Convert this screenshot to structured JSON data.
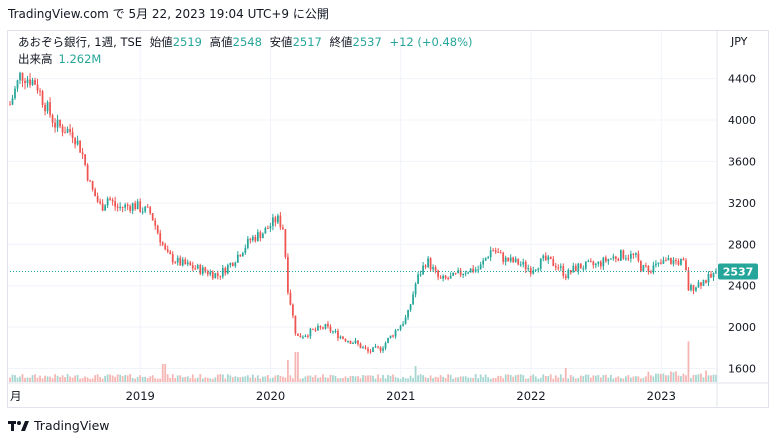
{
  "header": {
    "source_line": "TradingView.com で 5月 22, 2023 19:04 UTC+9 に公開"
  },
  "legend": {
    "symbol": "あおぞら銀行, 1週, TSE",
    "open_label": "始値",
    "open": "2519",
    "high_label": "高値",
    "high": "2548",
    "low_label": "安値",
    "low": "2517",
    "close_label": "終値",
    "close": "2537",
    "change": "+12 (+0.48%)",
    "volume_label": "出来高",
    "volume": "1.262M"
  },
  "footer": {
    "brand": "TradingView",
    "logo": "tradingview-logo-icon"
  },
  "colors": {
    "up": "#26a69a",
    "down": "#ef5350",
    "up_vol": "#a5d6d0",
    "down_vol": "#f5b5b3",
    "grid": "#f0f3fa"
  },
  "chart_data": {
    "type": "candlestick",
    "currency": "JPY",
    "last_price_label": "2537",
    "y_ticks": [
      1600,
      2000,
      2400,
      2800,
      3200,
      3600,
      4000,
      4400
    ],
    "ylim": [
      1470,
      4560
    ],
    "x_ticks": [
      {
        "label": "月",
        "x": 2018.0
      },
      {
        "label": "2019",
        "x": 2019.0
      },
      {
        "label": "2020",
        "x": 2020.0
      },
      {
        "label": "2021",
        "x": 2021.0
      },
      {
        "label": "2022",
        "x": 2022.0
      },
      {
        "label": "2023",
        "x": 2023.0
      }
    ],
    "xlim": [
      2018.0,
      2023.42
    ],
    "close_anchors": [
      {
        "x": 2018.0,
        "y": 4150
      },
      {
        "x": 2018.08,
        "y": 4440
      },
      {
        "x": 2018.2,
        "y": 4360
      },
      {
        "x": 2018.25,
        "y": 4200
      },
      {
        "x": 2018.35,
        "y": 3950
      },
      {
        "x": 2018.48,
        "y": 3880
      },
      {
        "x": 2018.55,
        "y": 3700
      },
      {
        "x": 2018.62,
        "y": 3350
      },
      {
        "x": 2018.7,
        "y": 3150
      },
      {
        "x": 2018.75,
        "y": 3250
      },
      {
        "x": 2018.82,
        "y": 3150
      },
      {
        "x": 2018.95,
        "y": 3180
      },
      {
        "x": 2019.08,
        "y": 3100
      },
      {
        "x": 2019.2,
        "y": 2700
      },
      {
        "x": 2019.3,
        "y": 2620
      },
      {
        "x": 2019.45,
        "y": 2560
      },
      {
        "x": 2019.6,
        "y": 2500
      },
      {
        "x": 2019.7,
        "y": 2620
      },
      {
        "x": 2019.85,
        "y": 2850
      },
      {
        "x": 2019.95,
        "y": 2920
      },
      {
        "x": 2020.05,
        "y": 3050
      },
      {
        "x": 2020.1,
        "y": 2950
      },
      {
        "x": 2020.13,
        "y": 2400
      },
      {
        "x": 2020.2,
        "y": 1900
      },
      {
        "x": 2020.3,
        "y": 1950
      },
      {
        "x": 2020.42,
        "y": 2000
      },
      {
        "x": 2020.55,
        "y": 1900
      },
      {
        "x": 2020.65,
        "y": 1850
      },
      {
        "x": 2020.75,
        "y": 1760
      },
      {
        "x": 2020.85,
        "y": 1800
      },
      {
        "x": 2020.95,
        "y": 1950
      },
      {
        "x": 2021.05,
        "y": 2100
      },
      {
        "x": 2021.12,
        "y": 2450
      },
      {
        "x": 2021.2,
        "y": 2650
      },
      {
        "x": 2021.3,
        "y": 2450
      },
      {
        "x": 2021.4,
        "y": 2480
      },
      {
        "x": 2021.5,
        "y": 2550
      },
      {
        "x": 2021.6,
        "y": 2560
      },
      {
        "x": 2021.7,
        "y": 2760
      },
      {
        "x": 2021.8,
        "y": 2650
      },
      {
        "x": 2021.9,
        "y": 2620
      },
      {
        "x": 2022.0,
        "y": 2560
      },
      {
        "x": 2022.1,
        "y": 2650
      },
      {
        "x": 2022.2,
        "y": 2600
      },
      {
        "x": 2022.27,
        "y": 2500
      },
      {
        "x": 2022.35,
        "y": 2580
      },
      {
        "x": 2022.5,
        "y": 2600
      },
      {
        "x": 2022.6,
        "y": 2660
      },
      {
        "x": 2022.7,
        "y": 2700
      },
      {
        "x": 2022.8,
        "y": 2680
      },
      {
        "x": 2022.85,
        "y": 2560
      },
      {
        "x": 2022.95,
        "y": 2580
      },
      {
        "x": 2023.05,
        "y": 2640
      },
      {
        "x": 2023.15,
        "y": 2630
      },
      {
        "x": 2023.18,
        "y": 2600
      },
      {
        "x": 2023.21,
        "y": 2360
      },
      {
        "x": 2023.28,
        "y": 2420
      },
      {
        "x": 2023.38,
        "y": 2480
      },
      {
        "x": 2023.42,
        "y": 2537
      }
    ],
    "volume_spikes": [
      {
        "x": 2019.18,
        "rel": 0.45
      },
      {
        "x": 2020.13,
        "rel": 0.55
      },
      {
        "x": 2020.2,
        "rel": 0.75
      },
      {
        "x": 2021.12,
        "rel": 0.4
      },
      {
        "x": 2022.27,
        "rel": 0.35
      },
      {
        "x": 2023.21,
        "rel": 1.0
      }
    ]
  }
}
